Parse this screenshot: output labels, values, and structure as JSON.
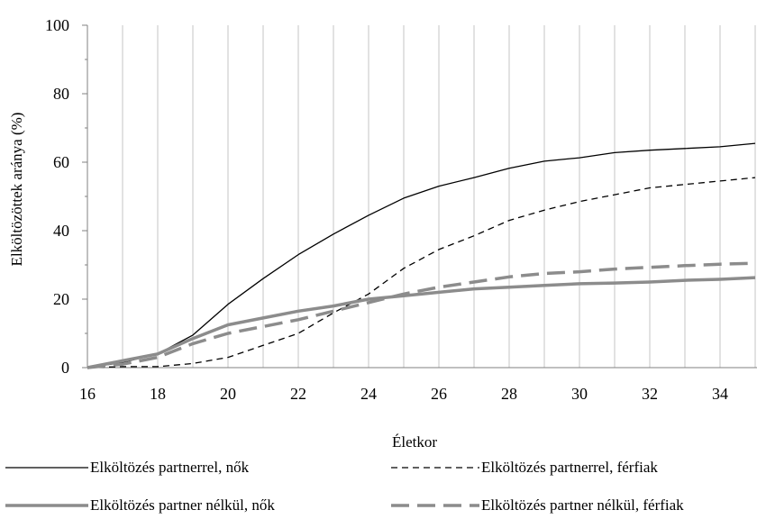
{
  "chart_data": {
    "type": "line",
    "title": "",
    "xlabel": "Életkor",
    "ylabel": "Elköltözöttek aránya (%)",
    "xlim": [
      16,
      35
    ],
    "ylim": [
      0,
      100
    ],
    "x_ticks": [
      16,
      18,
      20,
      22,
      24,
      26,
      28,
      30,
      32,
      34
    ],
    "y_ticks": [
      0,
      20,
      40,
      60,
      80,
      100
    ],
    "grid": "vertical",
    "legend_position": "bottom",
    "x": [
      16,
      17,
      18,
      19,
      20,
      21,
      22,
      23,
      24,
      25,
      26,
      27,
      28,
      29,
      30,
      31,
      32,
      33,
      34,
      35
    ],
    "series": [
      {
        "name": "Elköltözés partnerrel, nők",
        "color": "#000000",
        "style": "solid",
        "width": 1.3,
        "values": [
          0,
          1.5,
          4,
          9.5,
          18.5,
          26,
          33,
          39,
          44.5,
          49.5,
          53,
          55.5,
          58.2,
          60.3,
          61.3,
          62.8,
          63.5,
          64,
          64.5,
          65.5
        ]
      },
      {
        "name": "Elköltözés partnerrel, férfiak",
        "color": "#000000",
        "style": "dashed",
        "width": 1.3,
        "values": [
          0,
          0.3,
          0.3,
          1.2,
          3,
          6.5,
          10,
          16,
          21.5,
          29,
          34.5,
          38.5,
          43,
          46,
          48.5,
          50.5,
          52.5,
          53.5,
          54.5,
          55.5
        ]
      },
      {
        "name": "Elköltözés partner nélkül, nők",
        "color": "#8c8c8c",
        "style": "solid",
        "width": 3.5,
        "values": [
          0,
          2,
          4,
          8.5,
          12.5,
          14.5,
          16.5,
          18,
          20,
          21,
          22,
          23,
          23.5,
          24,
          24.5,
          24.7,
          25,
          25.5,
          25.8,
          26.3
        ]
      },
      {
        "name": "Elköltözés partner nélkül, férfiak",
        "color": "#8c8c8c",
        "style": "longdash",
        "width": 3.5,
        "values": [
          0,
          1,
          3,
          7,
          10,
          12,
          14,
          16.5,
          19,
          21.5,
          23.5,
          25,
          26.5,
          27.5,
          28,
          28.8,
          29.3,
          29.8,
          30.2,
          30.5
        ]
      }
    ]
  }
}
